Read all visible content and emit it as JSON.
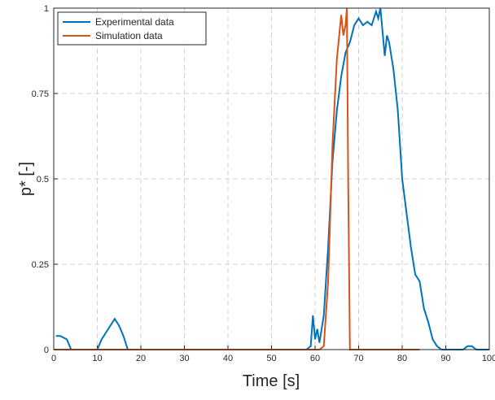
{
  "chart_data": {
    "type": "line",
    "x_label": "Time [s]",
    "y_label": "p* [-]",
    "xlim": [
      0,
      100
    ],
    "ylim": [
      0,
      1
    ],
    "xticks": [
      0,
      10,
      20,
      30,
      40,
      50,
      60,
      70,
      80,
      90,
      100
    ],
    "yticks": [
      0,
      0.25,
      0.5,
      0.75,
      1
    ],
    "grid": true,
    "legend": "top-left",
    "series": [
      {
        "name": "Experimental data",
        "color": "#0072bd",
        "x": [
          0.5,
          1.5,
          3,
          4,
          10,
          11,
          12,
          13,
          14,
          15,
          16,
          17,
          58,
          59,
          59.5,
          60,
          60.5,
          61,
          62,
          63,
          64,
          65,
          66,
          67,
          68,
          69,
          70,
          71,
          72,
          73,
          74,
          74.5,
          75,
          76,
          76.5,
          77,
          78,
          79,
          80,
          81,
          82,
          83,
          84,
          85,
          86,
          87,
          88,
          89,
          94,
          95,
          96,
          97,
          100
        ],
        "values": [
          0.04,
          0.04,
          0.03,
          0,
          0,
          0.03,
          0.05,
          0.07,
          0.09,
          0.07,
          0.04,
          0,
          0,
          0.01,
          0.1,
          0.03,
          0.06,
          0.02,
          0.1,
          0.3,
          0.55,
          0.7,
          0.8,
          0.87,
          0.9,
          0.95,
          0.97,
          0.95,
          0.96,
          0.95,
          0.99,
          0.97,
          1.0,
          0.86,
          0.92,
          0.9,
          0.82,
          0.7,
          0.5,
          0.4,
          0.3,
          0.22,
          0.2,
          0.12,
          0.08,
          0.03,
          0.01,
          0,
          0,
          0.01,
          0.01,
          0,
          0
        ]
      },
      {
        "name": "Simulation data",
        "color": "#d95319",
        "x": [
          0,
          61,
          62,
          63,
          64,
          65,
          66,
          66.5,
          67,
          67.3,
          67.6,
          68,
          84
        ],
        "values": [
          0,
          0,
          0.01,
          0.2,
          0.6,
          0.85,
          0.98,
          0.92,
          0.95,
          1.0,
          0.5,
          0,
          0
        ]
      }
    ]
  }
}
